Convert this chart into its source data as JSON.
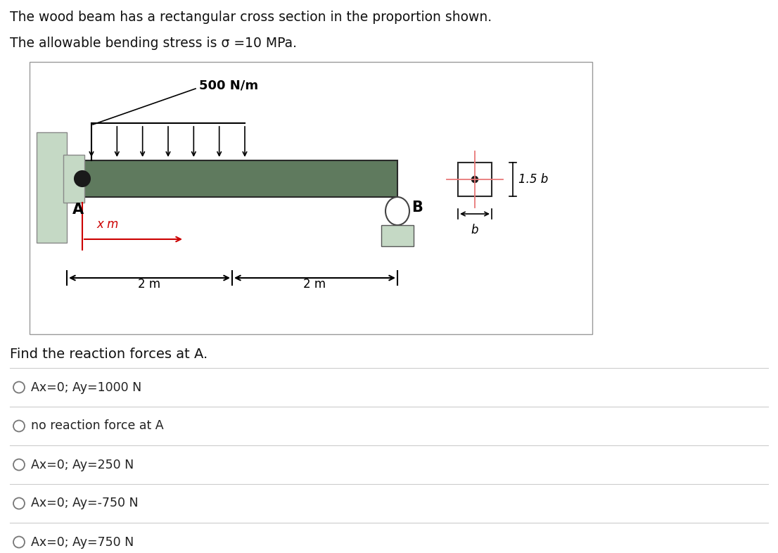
{
  "title_line1": "The wood beam has a rectangular cross section in the proportion shown.",
  "title_line2": "The allowable bending stress is σ =10 MPa.",
  "question": "Find the reaction forces at A.",
  "options": [
    "Ax=0; Ay=1000 N",
    "no reaction force at A",
    "Ax=0; Ay=250 N",
    "Ax=0; Ay=-750 N",
    "Ax=0; Ay=750 N"
  ],
  "load_label": "500 N/m",
  "dim_label1": "2 m",
  "dim_label2": "2 m",
  "x_label": "x m",
  "label_A": "A",
  "label_B": "B",
  "label_1p5b": "1.5 b",
  "label_b": "b",
  "beam_color": "#5f7a5e",
  "wall_color": "#c5d9c5",
  "bg_color": "#ffffff",
  "box_border_color": "#999999",
  "text_color": "#333333",
  "red_color": "#cc0000",
  "pink_color": "#e87878",
  "pin_color": "#c8d8c0"
}
